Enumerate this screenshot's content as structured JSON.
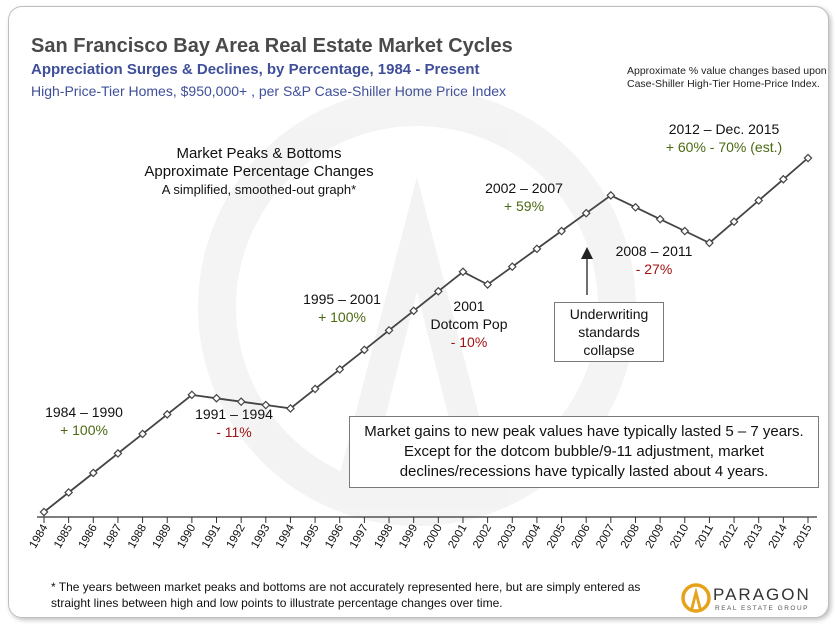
{
  "title": "San Francisco Bay Area Real Estate Market Cycles",
  "subtitle1": "Appreciation Surges & Declines, by Percentage,  1984 - Present",
  "subtitle2": "High-Price-Tier Homes, $950,000+ ,  per S&P Case-Shiller Home Price Index",
  "top_note": "Approximate % value changes based upon Case-Shiller High-Tier Home-Price Index.",
  "heading": {
    "line1": "Market Peaks & Bottoms",
    "line2": "Approximate Percentage Changes",
    "line3": "A simplified, smoothed-out graph*"
  },
  "annotations": [
    {
      "id": "a1984",
      "period": "1984 – 1990",
      "change": "+ 100%",
      "tone": "gain"
    },
    {
      "id": "a1991",
      "period": "1991 – 1994",
      "change": "- 11%",
      "tone": "loss"
    },
    {
      "id": "a1995",
      "period": "1995 – 2001",
      "change": "+ 100%",
      "tone": "gain"
    },
    {
      "id": "a2001",
      "period": "2001",
      "period2": "Dotcom Pop",
      "change": "- 10%",
      "tone": "loss"
    },
    {
      "id": "a2002",
      "period": "2002 – 2007",
      "change": "+ 59%",
      "tone": "gain"
    },
    {
      "id": "a2008",
      "period": "2008 – 2011",
      "change": "- 27%",
      "tone": "loss"
    },
    {
      "id": "a2012",
      "period": "2012 – Dec. 2015",
      "change": "+ 60% - 70% (est.)",
      "tone": "gain"
    }
  ],
  "underwriting_box": "Underwriting standards collapse",
  "gains_box": "Market gains  to new peak values have typically lasted 5 – 7 years. Except for the dotcom bubble/9-11 adjustment, market declines/recessions have typically lasted about 4 years.",
  "footnote": "* The years between market peaks and bottoms are not accurately represented here, but are simply entered as straight lines between high and low points to illustrate percentage changes over time.",
  "logo": {
    "name": "PARAGON",
    "tagline": "REAL ESTATE GROUP"
  },
  "colors": {
    "line": "#444444",
    "marker_fill": "#ffffff",
    "gain": "#4a6a12",
    "loss": "#a31212",
    "title": "#4a4a4a",
    "subtitle": "#3f4f9a"
  },
  "chart_data": {
    "type": "line",
    "xlabel": "",
    "ylabel": "",
    "grid": false,
    "x": [
      "1984",
      "1985",
      "1986",
      "1987",
      "1988",
      "1989",
      "1990",
      "1991",
      "1992",
      "1993",
      "1994",
      "1995",
      "1996",
      "1997",
      "1998",
      "1999",
      "2000",
      "2001",
      "2002",
      "2003",
      "2004",
      "2005",
      "2006",
      "2007",
      "2008",
      "2009",
      "2010",
      "2011",
      "2012",
      "2013",
      "2014",
      "2015"
    ],
    "values": [
      0,
      23,
      46,
      69,
      92,
      115,
      138,
      134,
      130,
      126,
      122,
      145,
      168,
      191,
      214,
      237,
      260,
      283,
      268,
      289,
      310,
      331,
      352,
      373,
      359,
      345,
      331,
      317,
      342,
      367,
      392,
      417
    ],
    "ylim": [
      0,
      430
    ],
    "markers": "diamond"
  }
}
